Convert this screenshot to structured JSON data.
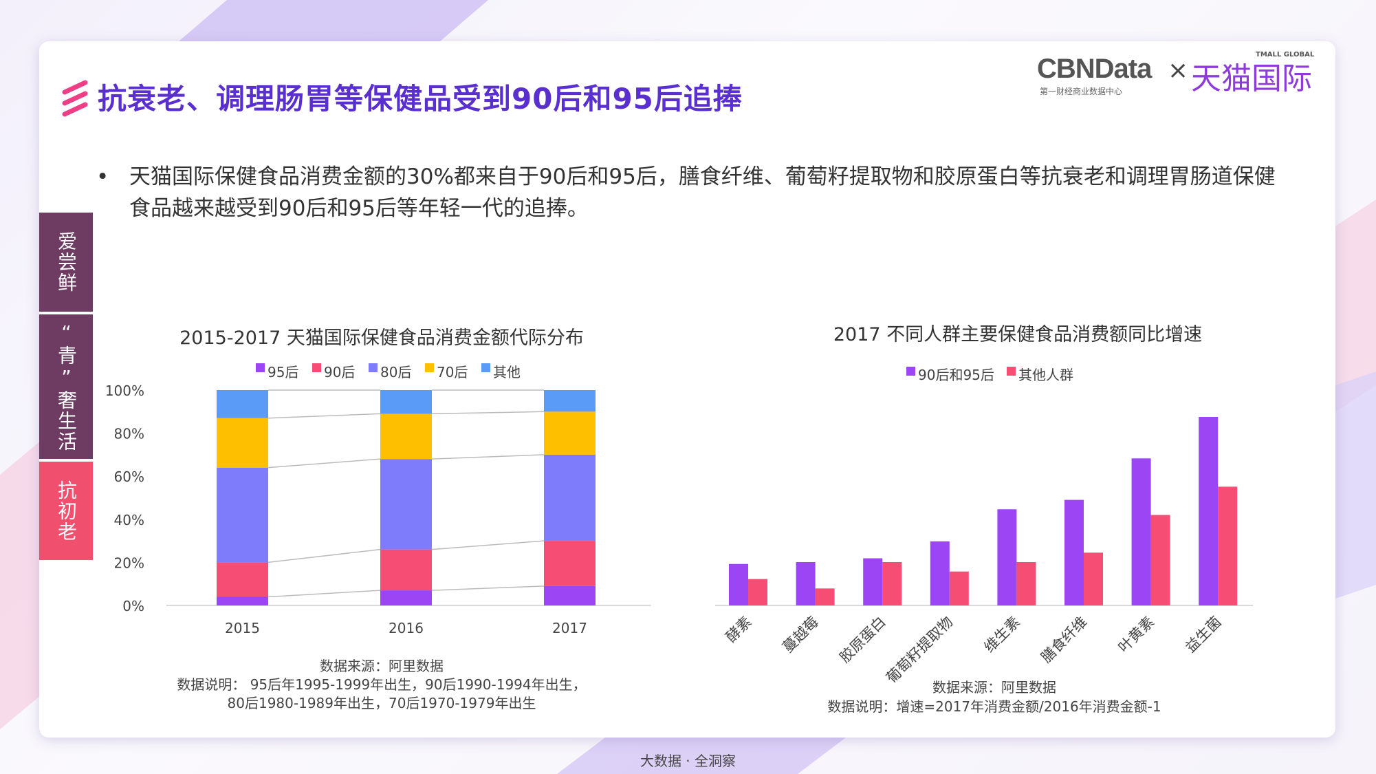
{
  "title": "抗衰老、调理肠胃等保健品受到90后和95后追捧",
  "logo": {
    "brand": "CBNData",
    "sub": "第一财经商业数据中心",
    "times": "×",
    "partner": "天猫国际",
    "partner_en": "TMALL GLOBAL"
  },
  "bullet": {
    "marker": "•",
    "text": "天猫国际保健食品消费金额的30%都来自于90后和95后，膳食纤维、葡萄籽提取物和胶原蛋白等抗衰老和调理胃肠道保健食品越来越受到90后和95后等年轻一代的追捧。"
  },
  "side_tabs": [
    {
      "label": "爱尝鲜",
      "color": "#6e3b63"
    },
    {
      "label": "“青”奢生活",
      "color": "#6e3b63"
    },
    {
      "label": "抗初老",
      "color": "#f0506e"
    }
  ],
  "footer": "大数据 · 全洞察",
  "chart_data": [
    {
      "type": "bar",
      "stacked": true,
      "title": "2015-2017 天猫国际保健食品消费金额代际分布",
      "categories": [
        "2015",
        "2016",
        "2017"
      ],
      "yticks": [
        "0%",
        "20%",
        "40%",
        "60%",
        "80%",
        "100%"
      ],
      "ylim": [
        0,
        100
      ],
      "legend_position": "top",
      "series": [
        {
          "name": "95后",
          "color": "#9b45f5",
          "values": [
            4,
            7,
            9
          ]
        },
        {
          "name": "90后",
          "color": "#f64d75",
          "values": [
            16,
            19,
            21
          ]
        },
        {
          "name": "80后",
          "color": "#7e7cfb",
          "values": [
            44,
            42,
            40
          ]
        },
        {
          "name": "70后",
          "color": "#fdbf00",
          "values": [
            23,
            21,
            20
          ]
        },
        {
          "name": "其他",
          "color": "#5b9bf8",
          "values": [
            13,
            11,
            10
          ]
        }
      ],
      "notes": [
        "数据来源：阿里数据",
        "数据说明： 95后年1995-1999年出生，90后1990-1994年出生，",
        "80后1980-1989年出生，70后1970-1979年出生"
      ]
    },
    {
      "type": "bar",
      "title": "2017 不同人群主要保健食品消费额同比增速",
      "categories": [
        "酵素",
        "蔓越莓",
        "胶原蛋白",
        "葡萄籽提取物",
        "维生素",
        "膳食纤维",
        "叶黄素",
        "益生菌"
      ],
      "ylim": [
        0,
        100
      ],
      "legend_position": "top",
      "series": [
        {
          "name": "90后和95后",
          "color": "#9b45f5",
          "values": [
            22,
            23,
            25,
            34,
            51,
            56,
            78,
            100
          ]
        },
        {
          "name": "其他人群",
          "color": "#f64d75",
          "values": [
            14,
            9,
            23,
            18,
            23,
            28,
            48,
            63
          ]
        }
      ],
      "notes": [
        "数据来源：阿里数据",
        "数据说明：增速=2017年消费金额/2016年消费金额-1"
      ]
    }
  ]
}
